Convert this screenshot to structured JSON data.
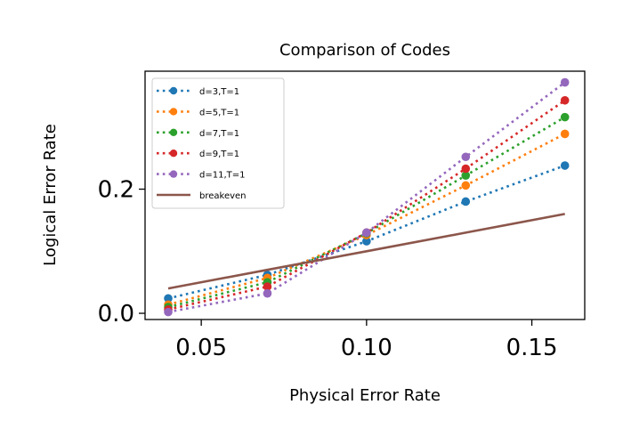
{
  "chart_data": {
    "type": "line",
    "title": "Comparison of Codes",
    "xlabel": "Physical Error Rate",
    "ylabel": "Logical Error Rate",
    "xlim": [
      0.033,
      0.166
    ],
    "ylim": [
      -0.01,
      0.39
    ],
    "x_ticks": [
      {
        "value": 0.05,
        "label": "0.05"
      },
      {
        "value": 0.1,
        "label": "0.10"
      },
      {
        "value": 0.15,
        "label": "0.15"
      }
    ],
    "y_ticks": [
      {
        "value": 0.0,
        "label": "0.0"
      },
      {
        "value": 0.2,
        "label": "0.2"
      }
    ],
    "grid": false,
    "legend_position": "upper-left",
    "x": [
      0.04,
      0.07,
      0.1,
      0.13,
      0.16
    ],
    "series": [
      {
        "name": "d=3,T=1",
        "color": "#1f77b4",
        "style": "dotted-markers",
        "values": [
          0.024,
          0.062,
          0.116,
          0.18,
          0.238
        ]
      },
      {
        "name": "d=5,T=1",
        "color": "#ff7f0e",
        "style": "dotted-markers",
        "values": [
          0.014,
          0.057,
          0.126,
          0.206,
          0.289
        ]
      },
      {
        "name": "d=7,T=1",
        "color": "#2ca02c",
        "style": "dotted-markers",
        "values": [
          0.01,
          0.05,
          0.129,
          0.222,
          0.316
        ]
      },
      {
        "name": "d=9,T=1",
        "color": "#d62728",
        "style": "dotted-markers",
        "values": [
          0.006,
          0.043,
          0.13,
          0.233,
          0.343
        ]
      },
      {
        "name": "d=11,T=1",
        "color": "#9467bd",
        "style": "dotted-markers",
        "values": [
          0.002,
          0.032,
          0.13,
          0.252,
          0.372
        ]
      },
      {
        "name": "breakeven",
        "color": "#8c564b",
        "style": "solid",
        "values": [
          0.04,
          0.07,
          0.1,
          0.13,
          0.16
        ]
      }
    ]
  }
}
